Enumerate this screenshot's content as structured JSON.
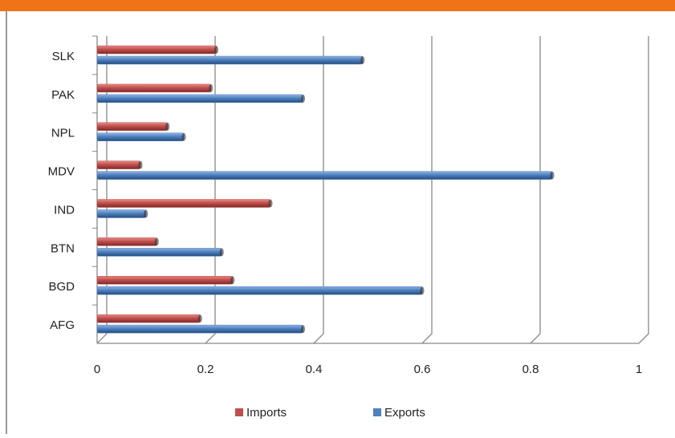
{
  "chart_data": {
    "type": "bar",
    "orientation": "horizontal",
    "categories": [
      "AFG",
      "BGD",
      "BTN",
      "IND",
      "MDV",
      "NPL",
      "PAK",
      "SLK"
    ],
    "series": [
      {
        "name": "Imports",
        "color": "#c0504d",
        "values": [
          0.19,
          0.25,
          0.11,
          0.32,
          0.08,
          0.13,
          0.21,
          0.22
        ]
      },
      {
        "name": "Exports",
        "color": "#4f81bd",
        "values": [
          0.38,
          0.6,
          0.23,
          0.09,
          0.84,
          0.16,
          0.38,
          0.49
        ]
      }
    ],
    "xlim": [
      0,
      1
    ],
    "xticks": [
      0,
      0.2,
      0.4,
      0.6,
      0.8,
      1
    ],
    "grid": true,
    "legend": "bottom"
  }
}
